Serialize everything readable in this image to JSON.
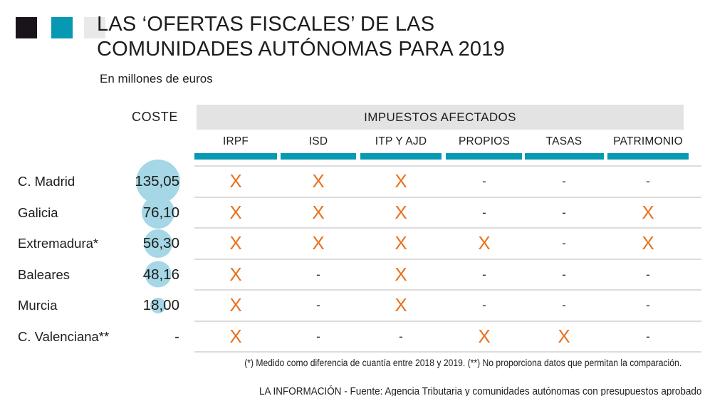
{
  "colors": {
    "brand_black": "#19141a",
    "teal": "#0899b2",
    "light_gray_square": "#e9e9e9",
    "band_gray": "#e3e3e3",
    "bubble_blue": "#a5d7e6",
    "orange_x": "#e8711c",
    "separator_gray": "#dcdcdc",
    "text_dark": "#1d1d1b"
  },
  "header": {
    "title_line1": "LAS ‘OFERTAS FISCALES’ DE LAS",
    "title_line2": "COMUNIDADES AUTÓNOMAS PARA 2019",
    "subtitle": "En millones de euros"
  },
  "table": {
    "coste_header": "COSTE",
    "group_header": "IMPUESTOS AFECTADOS",
    "tax_columns": [
      "IRPF",
      "ISD",
      "ITP Y AJD",
      "PROPIOS",
      "TASAS",
      "PATRIMONIO"
    ],
    "rows": [
      {
        "region": "C. Madrid",
        "coste": "135,05",
        "marks": [
          "X",
          "X",
          "X",
          "-",
          "-",
          "-"
        ]
      },
      {
        "region": "Galicia",
        "coste": "76,10",
        "marks": [
          "X",
          "X",
          "X",
          "-",
          "-",
          "X"
        ]
      },
      {
        "region": "Extremadura*",
        "coste": "56,30",
        "marks": [
          "X",
          "X",
          "X",
          "X",
          "-",
          "X"
        ]
      },
      {
        "region": "Baleares",
        "coste": "48,16",
        "marks": [
          "X",
          "-",
          "X",
          "-",
          "-",
          "-"
        ]
      },
      {
        "region": "Murcia",
        "coste": "18,00",
        "marks": [
          "X",
          "-",
          "X",
          "-",
          "-",
          "-"
        ]
      },
      {
        "region": "C. Valenciana**",
        "coste": "-",
        "marks": [
          "X",
          "-",
          "-",
          "X",
          "X",
          "-"
        ]
      }
    ]
  },
  "footnote": "(*) Medido como diferencia de cuantía entre 2018 y 2019. (**) No proporciona datos que permitan la comparación.",
  "credit": "LA INFORMACIÓN - Fuente: Agencia Tributaria y comunidades autónomas con presupuestos aprobado",
  "chart_data": {
    "type": "table",
    "title": "LAS ‘OFERTAS FISCALES’ DE LAS COMUNIDADES AUTÓNOMAS PARA 2019",
    "subtitle": "En millones de euros",
    "unit": "millones de euros",
    "columns": [
      "COSTE",
      "IRPF",
      "ISD",
      "ITP Y AJD",
      "PROPIOS",
      "TASAS",
      "PATRIMONIO"
    ],
    "rows": [
      {
        "region": "C. Madrid",
        "coste": 135.05,
        "impuestos_afectados": [
          "IRPF",
          "ISD",
          "ITP Y AJD"
        ]
      },
      {
        "region": "Galicia",
        "coste": 76.1,
        "impuestos_afectados": [
          "IRPF",
          "ISD",
          "ITP Y AJD",
          "PATRIMONIO"
        ]
      },
      {
        "region": "Extremadura",
        "coste": 56.3,
        "impuestos_afectados": [
          "IRPF",
          "ISD",
          "ITP Y AJD",
          "PROPIOS",
          "PATRIMONIO"
        ]
      },
      {
        "region": "Baleares",
        "coste": 48.16,
        "impuestos_afectados": [
          "IRPF",
          "ITP Y AJD"
        ]
      },
      {
        "region": "Murcia",
        "coste": 18.0,
        "impuestos_afectados": [
          "IRPF",
          "ITP Y AJD"
        ]
      },
      {
        "region": "C. Valenciana",
        "coste": null,
        "impuestos_afectados": [
          "IRPF",
          "PROPIOS",
          "TASAS"
        ]
      }
    ],
    "encoding_note": "bubble area behind COSTE value is proportional to coste",
    "legend_position": "none",
    "grid": "horizontal row separators only"
  }
}
